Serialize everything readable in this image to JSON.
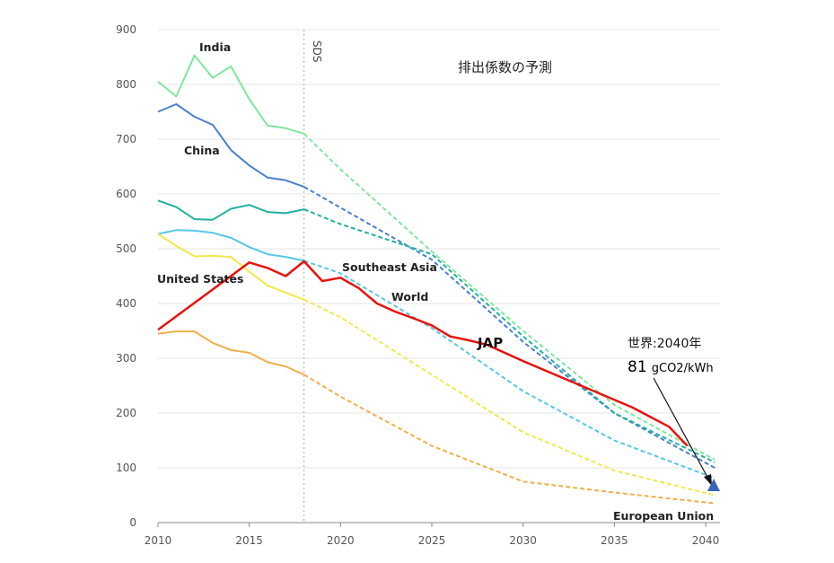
{
  "chart_data": {
    "type": "line",
    "title": "排出係数の予測",
    "x_ticks": [
      2010,
      2015,
      2020,
      2025,
      2030,
      2035,
      2040
    ],
    "y_ticks": [
      0,
      100,
      200,
      300,
      400,
      500,
      600,
      700,
      800,
      900
    ],
    "xlim": [
      2010,
      2040.5
    ],
    "ylim": [
      0,
      900
    ],
    "grid": "horizontal",
    "reference_line": {
      "x": 2018,
      "label": "SDS"
    },
    "series": [
      {
        "name": "India",
        "color": "#7ee89a",
        "actual": [
          [
            2010,
            805
          ],
          [
            2011,
            778
          ],
          [
            2012,
            853
          ],
          [
            2013,
            812
          ],
          [
            2014,
            833
          ],
          [
            2015,
            773
          ],
          [
            2016,
            725
          ],
          [
            2017,
            720
          ],
          [
            2018,
            710
          ]
        ],
        "projection": [
          [
            2018,
            710
          ],
          [
            2020,
            645
          ],
          [
            2025,
            495
          ],
          [
            2030,
            350
          ],
          [
            2035,
            215
          ],
          [
            2040.5,
            115
          ]
        ]
      },
      {
        "name": "China",
        "color": "#4a80cc",
        "actual": [
          [
            2010,
            750
          ],
          [
            2011,
            764
          ],
          [
            2012,
            741
          ],
          [
            2013,
            726
          ],
          [
            2014,
            680
          ],
          [
            2015,
            652
          ],
          [
            2016,
            630
          ],
          [
            2017,
            625
          ],
          [
            2018,
            613
          ]
        ],
        "projection": [
          [
            2018,
            613
          ],
          [
            2020,
            575
          ],
          [
            2025,
            480
          ],
          [
            2030,
            330
          ],
          [
            2035,
            200
          ],
          [
            2040.5,
            100
          ]
        ]
      },
      {
        "name": "Southeast Asia",
        "color": "#20b0a0",
        "actual": [
          [
            2010,
            588
          ],
          [
            2011,
            576
          ],
          [
            2012,
            554
          ],
          [
            2013,
            553
          ],
          [
            2014,
            573
          ],
          [
            2015,
            580
          ],
          [
            2016,
            567
          ],
          [
            2017,
            565
          ],
          [
            2018,
            572
          ]
        ],
        "projection": [
          [
            2018,
            572
          ],
          [
            2020,
            545
          ],
          [
            2025,
            490
          ],
          [
            2030,
            340
          ],
          [
            2035,
            200
          ],
          [
            2040.5,
            110
          ]
        ]
      },
      {
        "name": "World",
        "color": "#55c8e6",
        "actual": [
          [
            2010,
            527
          ],
          [
            2011,
            534
          ],
          [
            2012,
            533
          ],
          [
            2013,
            529
          ],
          [
            2014,
            520
          ],
          [
            2015,
            503
          ],
          [
            2016,
            490
          ],
          [
            2017,
            485
          ],
          [
            2018,
            478
          ]
        ],
        "projection": [
          [
            2018,
            478
          ],
          [
            2020,
            455
          ],
          [
            2025,
            355
          ],
          [
            2030,
            240
          ],
          [
            2035,
            150
          ],
          [
            2040.5,
            81
          ]
        ]
      },
      {
        "name": "United States",
        "color": "#f2e84a",
        "actual": [
          [
            2010,
            527
          ],
          [
            2011,
            505
          ],
          [
            2012,
            486
          ],
          [
            2013,
            487
          ],
          [
            2014,
            485
          ],
          [
            2015,
            458
          ],
          [
            2016,
            433
          ],
          [
            2017,
            420
          ],
          [
            2018,
            407
          ]
        ],
        "projection": [
          [
            2018,
            407
          ],
          [
            2020,
            375
          ],
          [
            2025,
            270
          ],
          [
            2030,
            165
          ],
          [
            2035,
            95
          ],
          [
            2040.5,
            50
          ]
        ]
      },
      {
        "name": "European Union",
        "color": "#f0b04a",
        "actual": [
          [
            2010,
            345
          ],
          [
            2011,
            349
          ],
          [
            2012,
            349
          ],
          [
            2013,
            328
          ],
          [
            2014,
            315
          ],
          [
            2015,
            310
          ],
          [
            2016,
            293
          ],
          [
            2017,
            285
          ],
          [
            2018,
            270
          ]
        ],
        "projection": [
          [
            2018,
            270
          ],
          [
            2020,
            230
          ],
          [
            2025,
            140
          ],
          [
            2030,
            75
          ],
          [
            2035,
            55
          ],
          [
            2040.5,
            35
          ]
        ]
      },
      {
        "name": "JAP",
        "color": "#e8120c",
        "actual": [
          [
            2010,
            352
          ],
          [
            2015,
            475
          ],
          [
            2016,
            465
          ],
          [
            2017,
            450
          ],
          [
            2018,
            477
          ],
          [
            2019,
            441
          ],
          [
            2020,
            447
          ],
          [
            2021,
            428
          ],
          [
            2022,
            400
          ],
          [
            2023,
            385
          ],
          [
            2024,
            373
          ],
          [
            2025,
            360
          ],
          [
            2026,
            340
          ],
          [
            2027,
            333
          ],
          [
            2028,
            325
          ],
          [
            2029,
            310
          ],
          [
            2030,
            295
          ],
          [
            2036,
            210
          ],
          [
            2038,
            175
          ],
          [
            2039,
            140
          ]
        ],
        "projection": []
      }
    ],
    "annotations": {
      "world_2040_line1": "世界:2040年",
      "world_2040_value": "81",
      "world_2040_unit": "gCO2/kWh",
      "marker": {
        "x": 2040.5,
        "y": 81,
        "color": "#3a64b4"
      }
    }
  }
}
